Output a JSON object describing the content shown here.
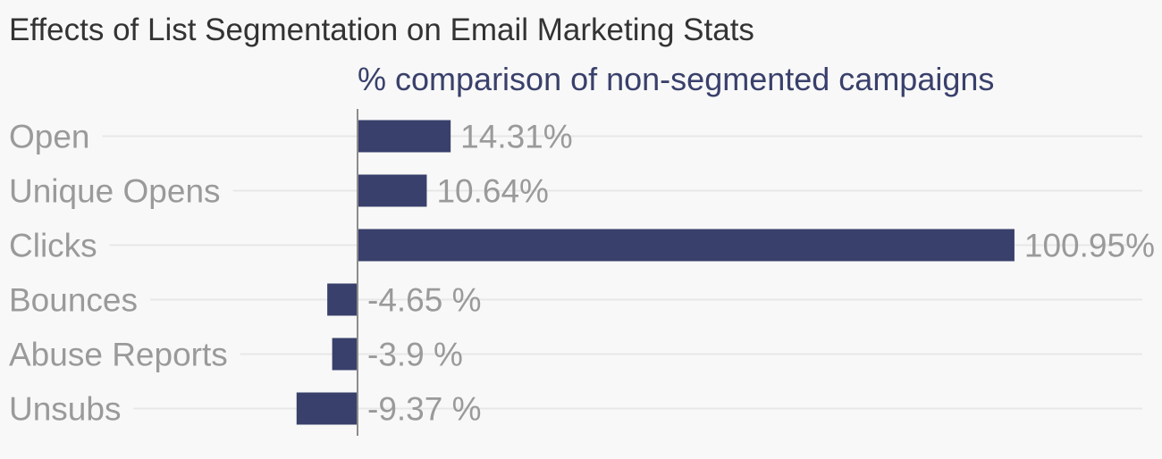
{
  "chart_data": {
    "type": "bar",
    "orientation": "horizontal",
    "title": "Effects of List Segmentation on Email Marketing Stats",
    "subtitle": "% comparison of non-segmented campaigns",
    "categories": [
      "Open",
      "Unique Opens",
      "Clicks",
      "Bounces",
      "Abuse Reports",
      "Unsubs"
    ],
    "values": [
      14.31,
      10.64,
      100.95,
      -4.65,
      -3.9,
      -9.37
    ],
    "value_labels": [
      "14.31%",
      "10.64%",
      "100.95%",
      "-4.65 %",
      "-3.9 %",
      "-9.37 %"
    ],
    "xlim": [
      -10,
      100.95
    ],
    "grid": true,
    "colors": {
      "bar": "#39406b",
      "label": "#9a9a9a",
      "title": "#333333",
      "subtitle": "#39406b",
      "grid": "#e7e7e7",
      "axis": "#8c8c8c",
      "background": "#f8f8f8"
    }
  }
}
